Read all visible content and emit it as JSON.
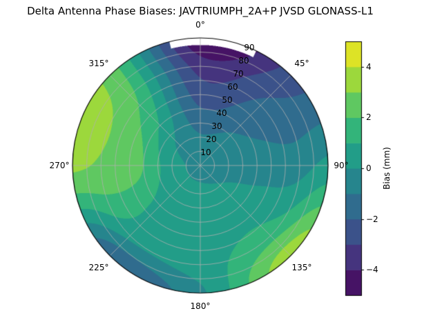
{
  "title": "Delta Antenna Phase Biases: JAVTRIUMPH_2A+P JVSD GLONASS-L1",
  "chart_data": {
    "type": "heatmap",
    "subtype": "polar_filled_contour",
    "title": "Delta Antenna Phase Biases: JAVTRIUMPH_2A+P JVSD GLONASS-L1",
    "azimuth_tick_labels": [
      "0°",
      "45°",
      "90°",
      "135°",
      "180°",
      "225°",
      "270°",
      "315°"
    ],
    "radial_tick_labels": [
      "10",
      "20",
      "30",
      "40",
      "50",
      "60",
      "70",
      "80",
      "90"
    ],
    "radial_axis": {
      "min": 0,
      "max": 90
    },
    "grid_on": true,
    "colorbar": {
      "label": "Bias (mm)",
      "tick_labels": [
        "4",
        "2",
        "0",
        "−2",
        "−4"
      ],
      "tick_values": [
        4,
        2,
        0,
        -2,
        -4
      ],
      "vmin": -5,
      "vmax": 5,
      "level_step_mm": 1,
      "colormap": "viridis"
    },
    "grid": {
      "azimuth_deg": [
        0,
        45,
        90,
        135,
        180,
        225,
        270,
        315
      ],
      "zenith_deg": [
        0,
        22.5,
        45,
        67.5,
        90
      ],
      "bias_mm": [
        [
          -0.3,
          -0.3,
          -0.3,
          -0.3,
          -0.3,
          -0.3,
          -0.3,
          -0.3
        ],
        [
          -1.0,
          -0.7,
          -0.3,
          0.1,
          0.3,
          0.4,
          0.6,
          -0.1
        ],
        [
          -2.2,
          -1.4,
          -0.5,
          0.6,
          0.6,
          0.8,
          2.3,
          1.2
        ],
        [
          -3.3,
          -2.0,
          -0.5,
          1.4,
          0.6,
          0.5,
          2.8,
          2.2
        ],
        [
          -4.8,
          -2.6,
          0.3,
          3.6,
          -0.2,
          -1.8,
          3.2,
          2.6
        ]
      ]
    },
    "missing_region": {
      "azimuth_min_deg": -14,
      "azimuth_max_deg": 26,
      "zenith_min_deg": 85
    }
  },
  "colors": {
    "background": "#ffffff",
    "grid_line": "#b0b0b0",
    "axes_edge": "#000000",
    "text": "#000000",
    "viridis_anchors": [
      "#440154",
      "#482475",
      "#414487",
      "#355f8d",
      "#2a788e",
      "#21918c",
      "#22a884",
      "#44bf70",
      "#7ad151",
      "#bddf26",
      "#fde725"
    ]
  }
}
